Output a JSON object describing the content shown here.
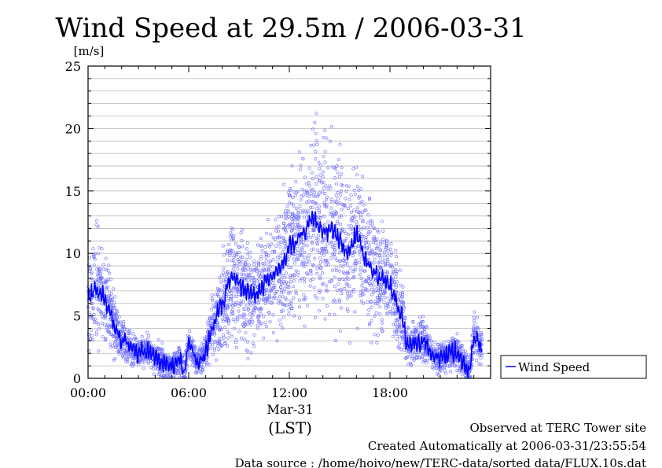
{
  "chart_data": {
    "type": "scatter",
    "title": "Wind Speed at 29.5m / 2006-03-31",
    "ylabel": "[m/s]",
    "xlabel": "(LST)",
    "date_label": "Mar-31",
    "ylim": [
      0,
      25
    ],
    "yticks": [
      0,
      5,
      10,
      15,
      20,
      25
    ],
    "xlim": [
      0,
      24
    ],
    "xticks": [
      {
        "hour": 0,
        "label": "00:00"
      },
      {
        "hour": 6,
        "label": "06:00"
      },
      {
        "hour": 12,
        "label": "12:00"
      },
      {
        "hour": 18,
        "label": "18:00"
      }
    ],
    "grid": true,
    "legend_position": "right",
    "series": [
      {
        "name": "Wind Speed",
        "color": "#0000ff",
        "x": [
          0,
          0.5,
          1,
          1.5,
          2,
          2.5,
          3,
          3.5,
          4,
          4.5,
          5,
          5.5,
          5.75,
          6,
          6.5,
          7,
          7.5,
          8,
          8.5,
          9,
          9.5,
          10,
          10.5,
          11,
          11.5,
          12,
          12.5,
          13,
          13.5,
          14,
          14.5,
          15,
          15.5,
          16,
          16.5,
          17,
          17.5,
          18,
          18.5,
          18.75,
          19,
          19.5,
          20,
          20.5,
          21,
          21.5,
          22,
          22.5,
          22.75,
          23,
          23.5
        ],
        "y": [
          6.5,
          7.2,
          6.5,
          4.5,
          3.0,
          2.5,
          2.0,
          2.3,
          1.8,
          1.2,
          1.0,
          1.5,
          0.5,
          3.0,
          1.2,
          2.0,
          4.5,
          6.0,
          8.0,
          7.5,
          7.0,
          6.5,
          7.5,
          8.0,
          9.0,
          10.5,
          11.0,
          12.0,
          13.0,
          11.5,
          12.0,
          11.0,
          10.0,
          11.5,
          9.5,
          8.5,
          8.0,
          7.5,
          5.5,
          5.0,
          2.5,
          2.8,
          3.0,
          2.0,
          1.5,
          2.0,
          2.2,
          1.0,
          0.5,
          3.3,
          2.5
        ]
      }
    ]
  },
  "footer": {
    "observed": "Observed at TERC Tower site",
    "created": "Created Automatically at 2006-03-31/23:55:54",
    "source": "Data source : /home/hoivo/new/TERC-data/sorted  data/FLUX.10s.dat"
  }
}
